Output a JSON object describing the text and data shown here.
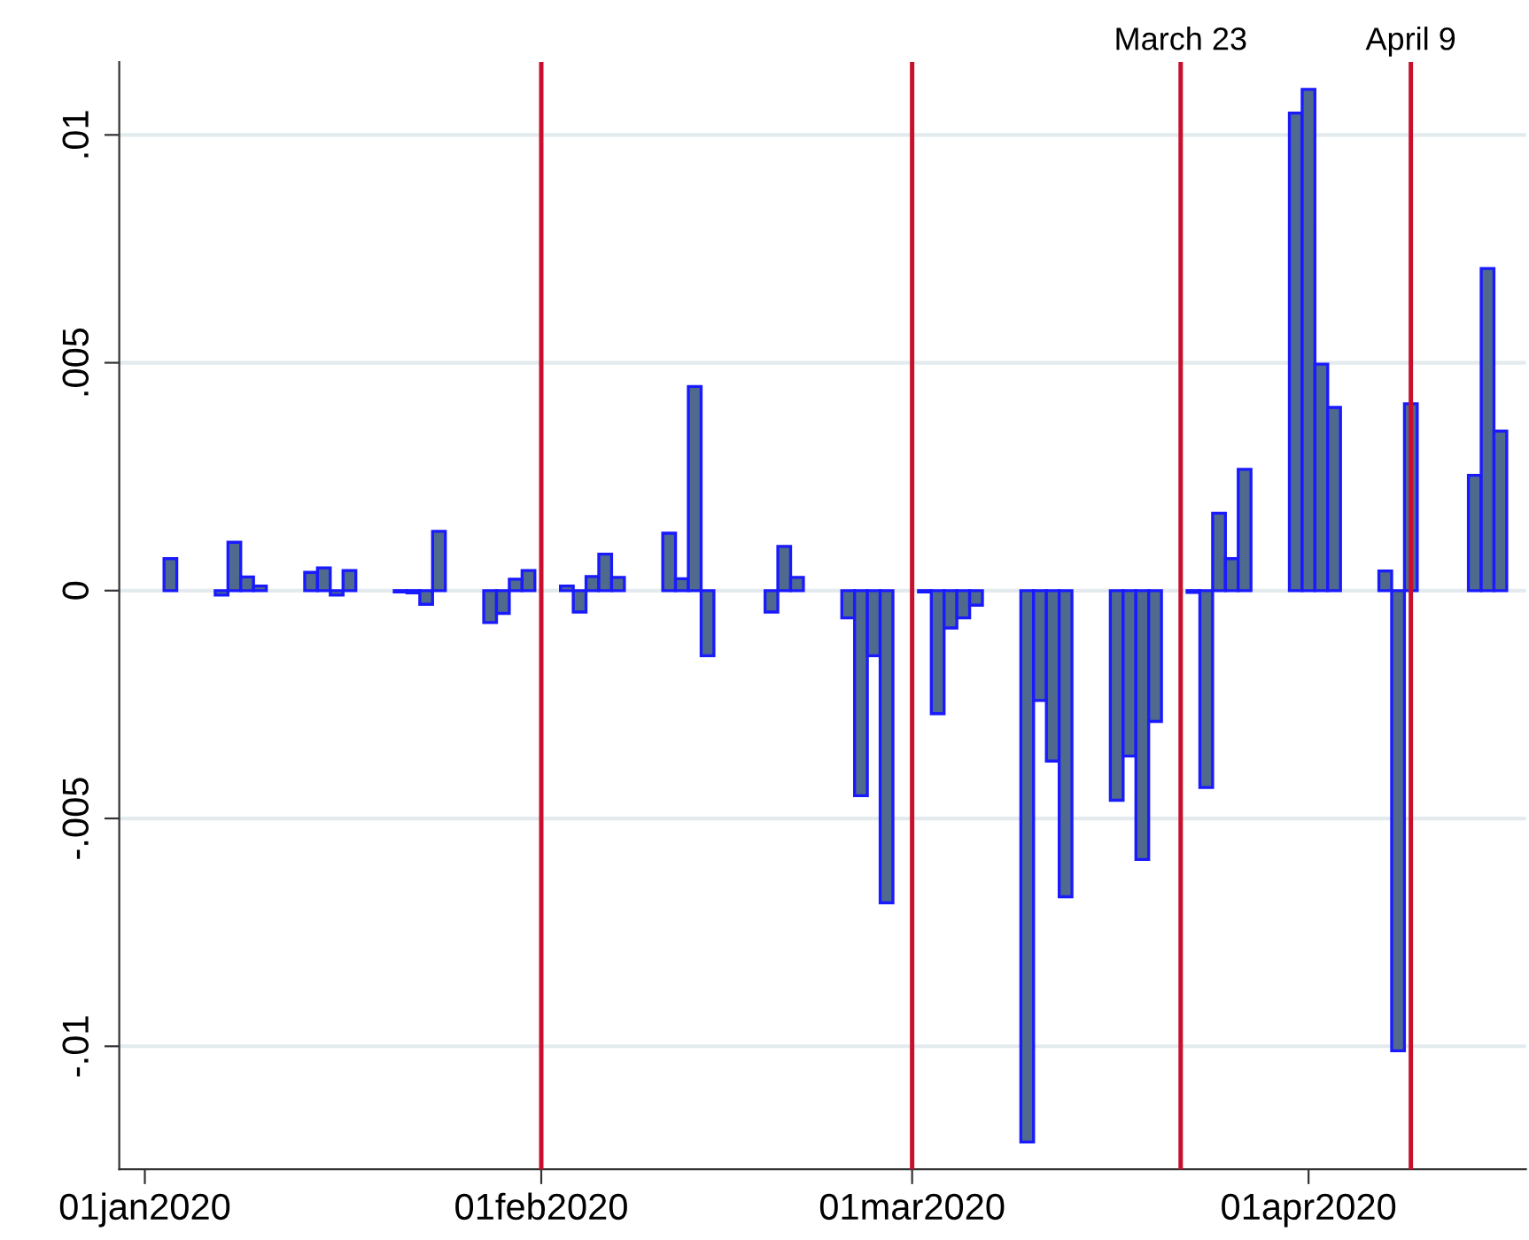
{
  "chart_data": {
    "type": "bar",
    "x": [
      "2020-01-03",
      "2020-01-07",
      "2020-01-08",
      "2020-01-09",
      "2020-01-10",
      "2020-01-14",
      "2020-01-15",
      "2020-01-16",
      "2020-01-17",
      "2020-01-21",
      "2020-01-22",
      "2020-01-23",
      "2020-01-24",
      "2020-01-28",
      "2020-01-29",
      "2020-01-30",
      "2020-01-31",
      "2020-02-03",
      "2020-02-04",
      "2020-02-05",
      "2020-02-06",
      "2020-02-07",
      "2020-02-11",
      "2020-02-12",
      "2020-02-13",
      "2020-02-14",
      "2020-02-19",
      "2020-02-20",
      "2020-02-21",
      "2020-02-25",
      "2020-02-26",
      "2020-02-27",
      "2020-02-28",
      "2020-03-02",
      "2020-03-03",
      "2020-03-04",
      "2020-03-05",
      "2020-03-06",
      "2020-03-10",
      "2020-03-11",
      "2020-03-12",
      "2020-03-13",
      "2020-03-17",
      "2020-03-18",
      "2020-03-19",
      "2020-03-20",
      "2020-03-23",
      "2020-03-24",
      "2020-03-25",
      "2020-03-26",
      "2020-03-27",
      "2020-03-31",
      "2020-04-01",
      "2020-04-02",
      "2020-04-03",
      "2020-04-07",
      "2020-04-08",
      "2020-04-09",
      "2020-04-14",
      "2020-04-15",
      "2020-04-16"
    ],
    "values": [
      0.0007,
      -0.0001,
      0.00106,
      0.0003,
      0.0001,
      0.0004,
      0.0005,
      -0.0001,
      0.00044,
      -3e-05,
      -5e-05,
      -0.0003,
      0.0013,
      -0.0007,
      -0.0005,
      0.00025,
      0.00044,
      0.0001,
      -0.00047,
      0.00031,
      0.0008,
      0.00029,
      0.00126,
      0.00026,
      0.00448,
      -0.00143,
      -0.00047,
      0.00097,
      0.00029,
      -0.0006,
      -0.0045,
      -0.00143,
      -0.00685,
      -3e-05,
      -0.0027,
      -0.00082,
      -0.0006,
      -0.00032,
      -0.0121,
      -0.00241,
      -0.00374,
      -0.00672,
      -0.0046,
      -0.00363,
      -0.0059,
      -0.00287,
      -4e-05,
      -0.00432,
      0.0017,
      0.0007,
      0.00266,
      0.01048,
      0.011,
      0.00497,
      0.00402,
      0.00043,
      -0.0101,
      0.0041,
      0.00253,
      0.00707,
      0.0035
    ],
    "color": "#4f6a8c",
    "xlim": [
      "2019-12-30",
      "2020-04-18"
    ],
    "xticks": [
      {
        "value": "2020-01-01",
        "label": "01jan2020"
      },
      {
        "value": "2020-02-01",
        "label": "01feb2020"
      },
      {
        "value": "2020-03-01",
        "label": "01mar2020"
      },
      {
        "value": "2020-04-01",
        "label": "01apr2020"
      }
    ],
    "ylim": [
      -0.0127,
      0.0116
    ],
    "yticks": [
      {
        "value": -0.01,
        "label": "-.01"
      },
      {
        "value": -0.005,
        "label": "-.005"
      },
      {
        "value": 0,
        "label": "0"
      },
      {
        "value": 0.005,
        "label": ".005"
      },
      {
        "value": 0.01,
        "label": ".01"
      }
    ],
    "grid": "y",
    "ref_lines": [
      {
        "axis": "x",
        "value": "2020-02-01",
        "color": "#c8102e"
      },
      {
        "axis": "x",
        "value": "2020-03-01",
        "color": "#c8102e"
      },
      {
        "axis": "x",
        "value": "2020-03-22",
        "label": "March 23",
        "color": "#c8102e"
      },
      {
        "axis": "x",
        "value": "2020-04-09",
        "label": "April 9",
        "color": "#c8102e"
      }
    ]
  }
}
